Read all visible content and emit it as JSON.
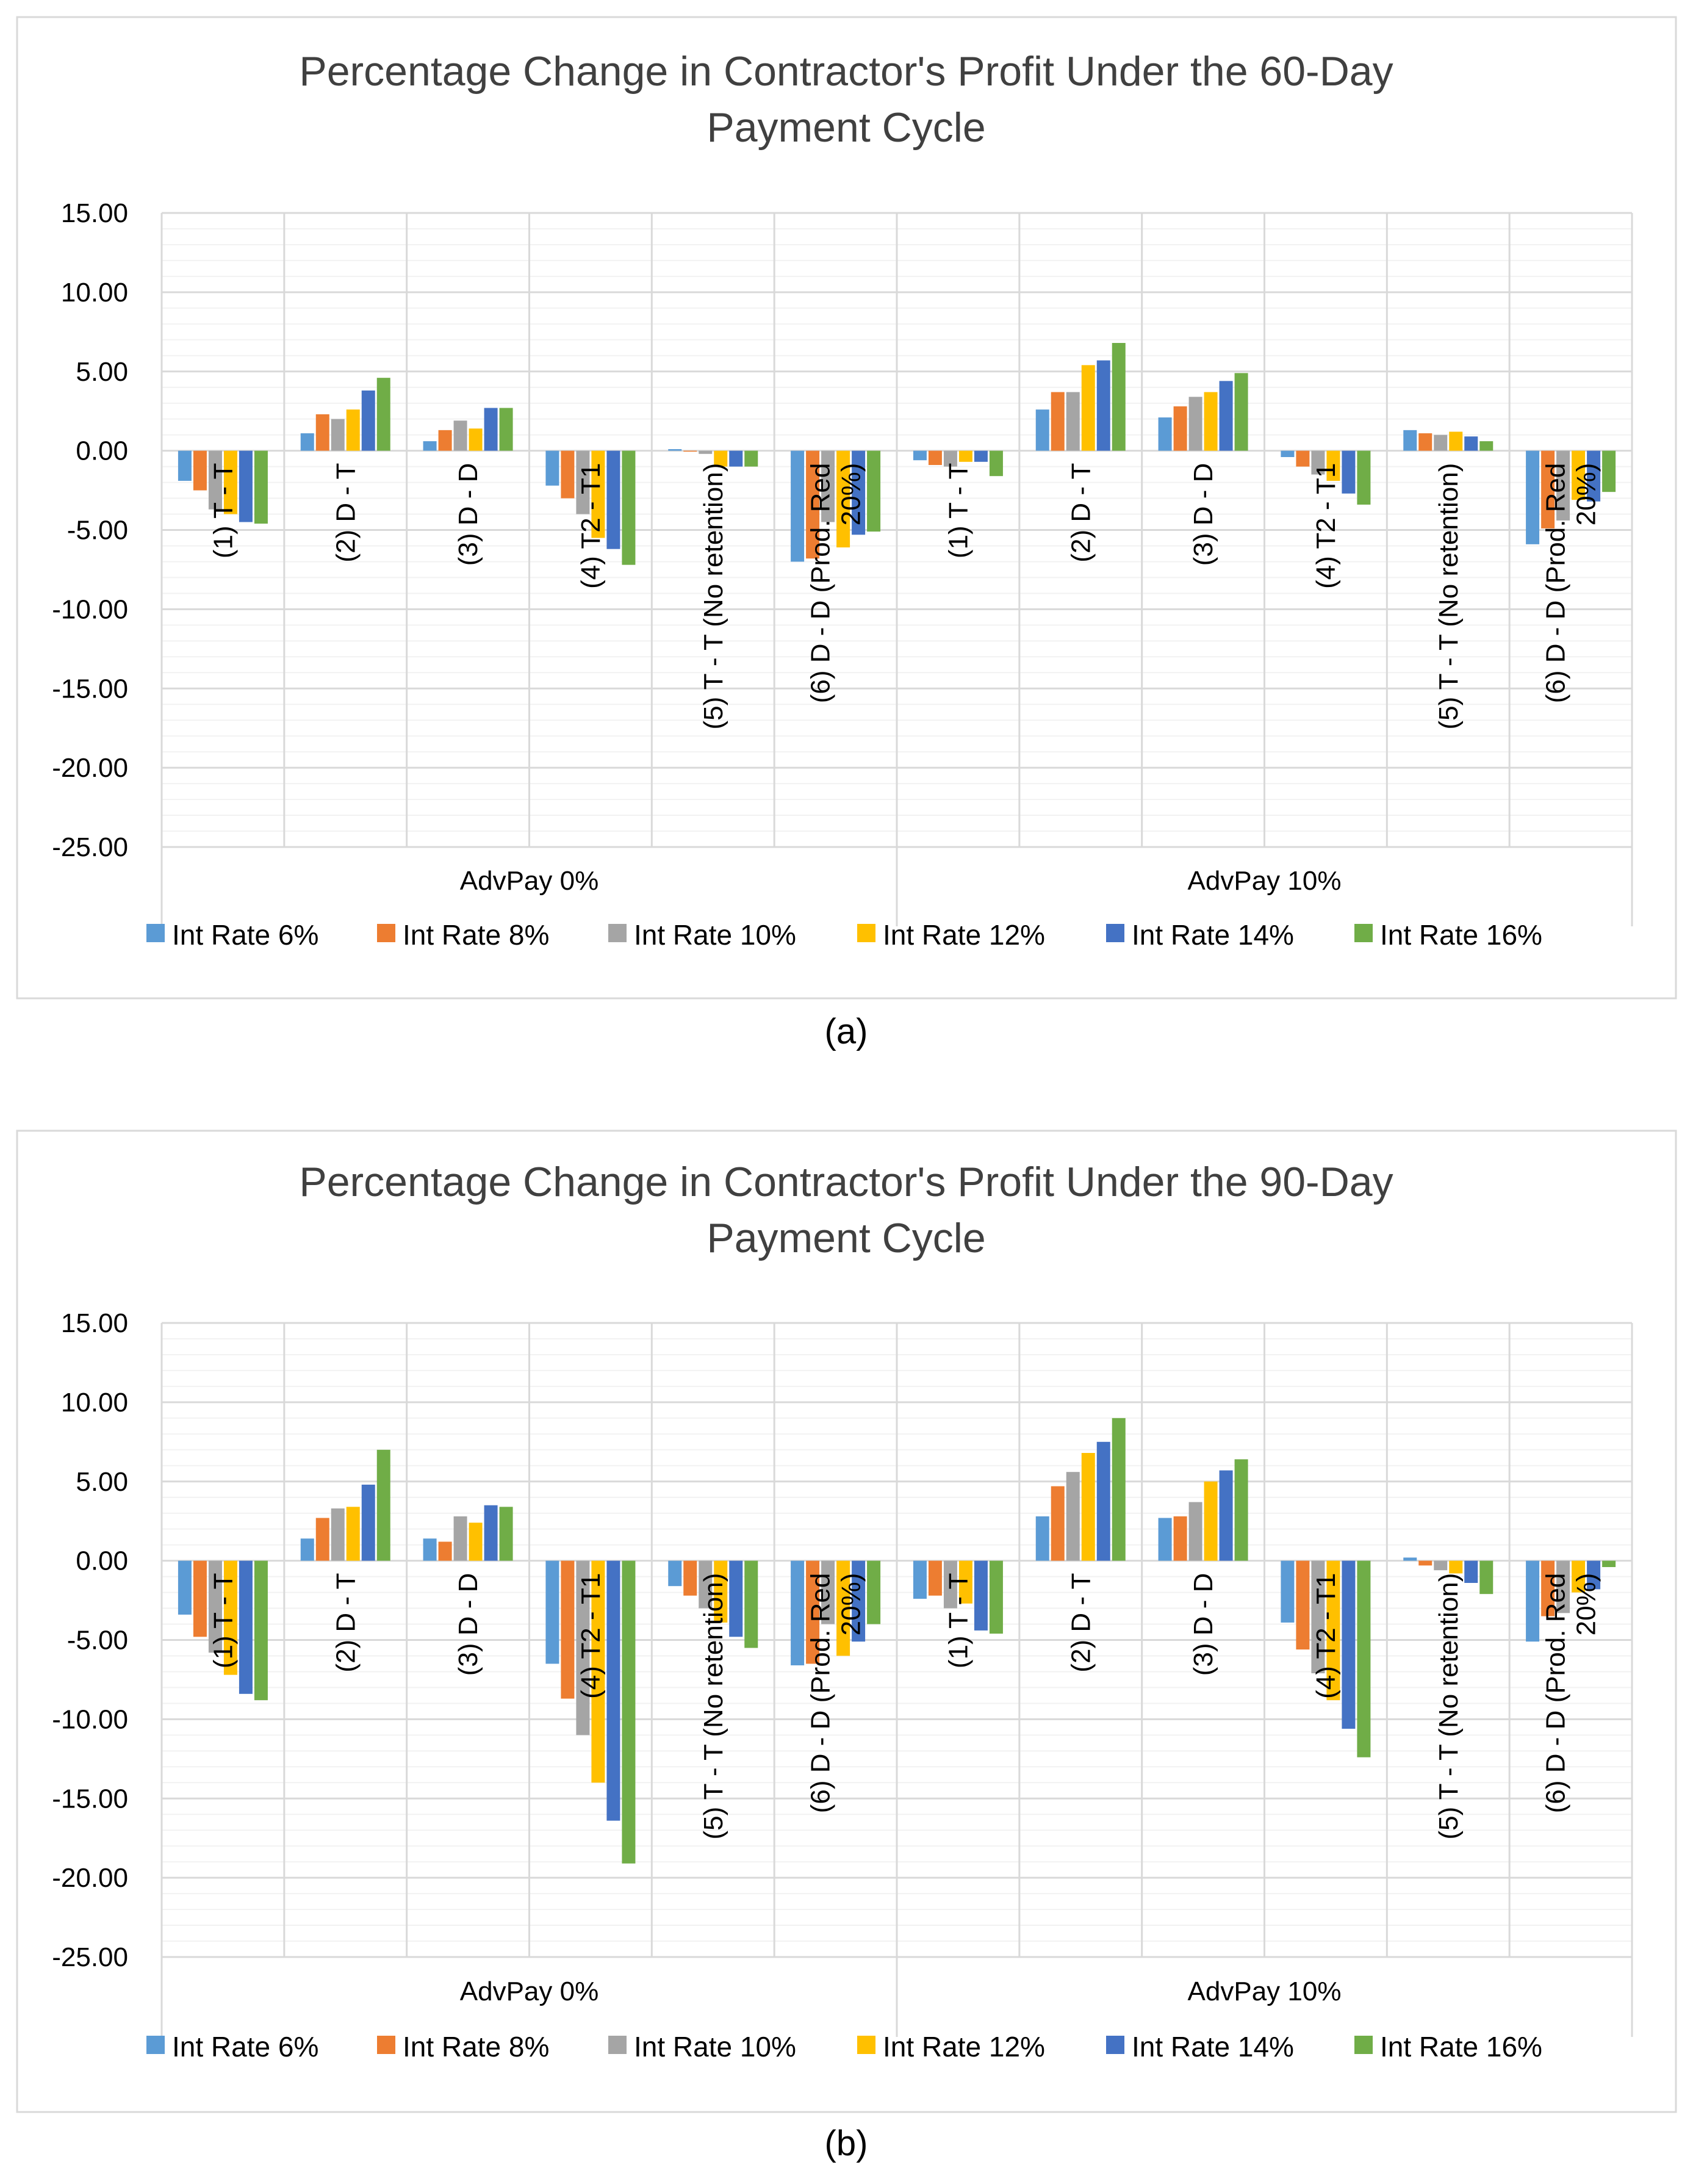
{
  "colors": {
    "Int Rate 6%": "#5b9bd5",
    "Int Rate 8%": "#ed7d31",
    "Int Rate 10%": "#a5a5a5",
    "Int Rate 12%": "#ffc000",
    "Int Rate 14%": "#4472c4",
    "Int Rate 16%": "#70ad47"
  },
  "chart_data": [
    {
      "type": "bar",
      "caption": "(a)",
      "title_lines": [
        "Percentage Change in Contractor's Profit Under the 60-Day",
        "Payment Cycle"
      ],
      "ylim": [
        -25,
        15
      ],
      "yticks": [
        "15.00",
        "10.00",
        "5.00",
        "0.00",
        "-5.00",
        "-10.00",
        "-15.00",
        "-20.00",
        "-25.00"
      ],
      "groups": [
        "AdvPay 0%",
        "AdvPay 10%"
      ],
      "categories": [
        [
          "(1) T - T"
        ],
        [
          "(2) D - T"
        ],
        [
          "(3) D - D"
        ],
        [
          "(4) T2 - T1"
        ],
        [
          "(5) T - T (No retention)"
        ],
        [
          "(6) D - D (Prod. Red",
          "20%)"
        ],
        [
          "(1) T - T"
        ],
        [
          "(2) D - T"
        ],
        [
          "(3) D - D"
        ],
        [
          "(4) T2 - T1"
        ],
        [
          "(5) T - T (No retention)"
        ],
        [
          "(6) D - D (Prod. Red",
          "20%)"
        ]
      ],
      "series": [
        {
          "name": "Int Rate 6%",
          "values": [
            -1.9,
            1.1,
            0.6,
            -2.2,
            0.1,
            -7.0,
            -0.6,
            2.6,
            2.1,
            -0.4,
            1.3,
            -5.9
          ]
        },
        {
          "name": "Int Rate 8%",
          "values": [
            -2.5,
            2.3,
            1.3,
            -3.0,
            0.0,
            -6.8,
            -0.9,
            3.7,
            2.8,
            -1.0,
            1.1,
            -4.9
          ]
        },
        {
          "name": "Int Rate 10%",
          "values": [
            -3.7,
            2.0,
            1.9,
            -4.0,
            -0.2,
            -4.5,
            -1.0,
            3.7,
            3.4,
            -1.5,
            1.0,
            -4.4
          ]
        },
        {
          "name": "Int Rate 12%",
          "values": [
            -4.0,
            2.6,
            1.4,
            -5.5,
            -1.0,
            -6.1,
            -0.7,
            5.4,
            3.7,
            -1.9,
            1.2,
            -3.1
          ]
        },
        {
          "name": "Int Rate 14%",
          "values": [
            -4.5,
            3.8,
            2.7,
            -6.2,
            -1.0,
            -5.3,
            -0.7,
            5.7,
            4.4,
            -2.7,
            0.9,
            -3.2
          ]
        },
        {
          "name": "Int Rate 16%",
          "values": [
            -4.6,
            4.6,
            2.7,
            -7.2,
            -1.0,
            -5.1,
            -1.6,
            6.8,
            4.9,
            -3.4,
            0.6,
            -2.6
          ]
        }
      ],
      "legend": [
        "Int Rate 6%",
        "Int Rate 8%",
        "Int Rate 10%",
        "Int Rate 12%",
        "Int Rate 14%",
        "Int Rate 16%"
      ]
    },
    {
      "type": "bar",
      "caption": "(b)",
      "title_lines": [
        "Percentage Change in Contractor's Profit Under the 90-Day",
        "Payment Cycle"
      ],
      "ylim": [
        -25,
        15
      ],
      "yticks": [
        "15.00",
        "10.00",
        "5.00",
        "0.00",
        "-5.00",
        "-10.00",
        "-15.00",
        "-20.00",
        "-25.00"
      ],
      "groups": [
        "AdvPay 0%",
        "AdvPay 10%"
      ],
      "categories": [
        [
          "(1) T - T"
        ],
        [
          "(2) D - T"
        ],
        [
          "(3) D - D"
        ],
        [
          "(4) T2 - T1"
        ],
        [
          "(5) T - T (No retention)"
        ],
        [
          "(6) D - D (Prod. Red",
          "20%)"
        ],
        [
          "(1) T - T"
        ],
        [
          "(2) D - T"
        ],
        [
          "(3) D - D"
        ],
        [
          "(4) T2 - T1"
        ],
        [
          "(5) T - T (No retention)"
        ],
        [
          "(6) D - D (Prod. Red",
          "20%)"
        ]
      ],
      "series": [
        {
          "name": "Int Rate 6%",
          "values": [
            -3.4,
            1.4,
            1.4,
            -6.5,
            -1.6,
            -6.6,
            -2.4,
            2.8,
            2.7,
            -3.9,
            0.2,
            -5.1
          ]
        },
        {
          "name": "Int Rate 8%",
          "values": [
            -4.8,
            2.7,
            1.2,
            -8.7,
            -2.2,
            -6.5,
            -2.2,
            4.7,
            2.8,
            -5.6,
            -0.3,
            -3.5
          ]
        },
        {
          "name": "Int Rate 10%",
          "values": [
            -5.8,
            3.3,
            2.8,
            -11.0,
            -3.0,
            -4.0,
            -3.0,
            5.6,
            3.7,
            -7.1,
            -0.6,
            -3.3
          ]
        },
        {
          "name": "Int Rate 12%",
          "values": [
            -7.2,
            3.4,
            2.4,
            -14.0,
            -3.9,
            -6.0,
            -2.7,
            6.8,
            5.0,
            -8.8,
            -0.8,
            -2.0
          ]
        },
        {
          "name": "Int Rate 14%",
          "values": [
            -8.4,
            4.8,
            3.5,
            -16.4,
            -4.8,
            -5.1,
            -4.4,
            7.5,
            5.7,
            -10.6,
            -1.4,
            -1.8
          ]
        },
        {
          "name": "Int Rate 16%",
          "values": [
            -8.8,
            7.0,
            3.4,
            -19.1,
            -5.5,
            -4.0,
            -4.6,
            9.0,
            6.4,
            -12.4,
            -2.1,
            -0.4
          ]
        }
      ],
      "legend": [
        "Int Rate 6%",
        "Int Rate 8%",
        "Int Rate 10%",
        "Int Rate 12%",
        "Int Rate 14%",
        "Int Rate 16%"
      ]
    }
  ]
}
